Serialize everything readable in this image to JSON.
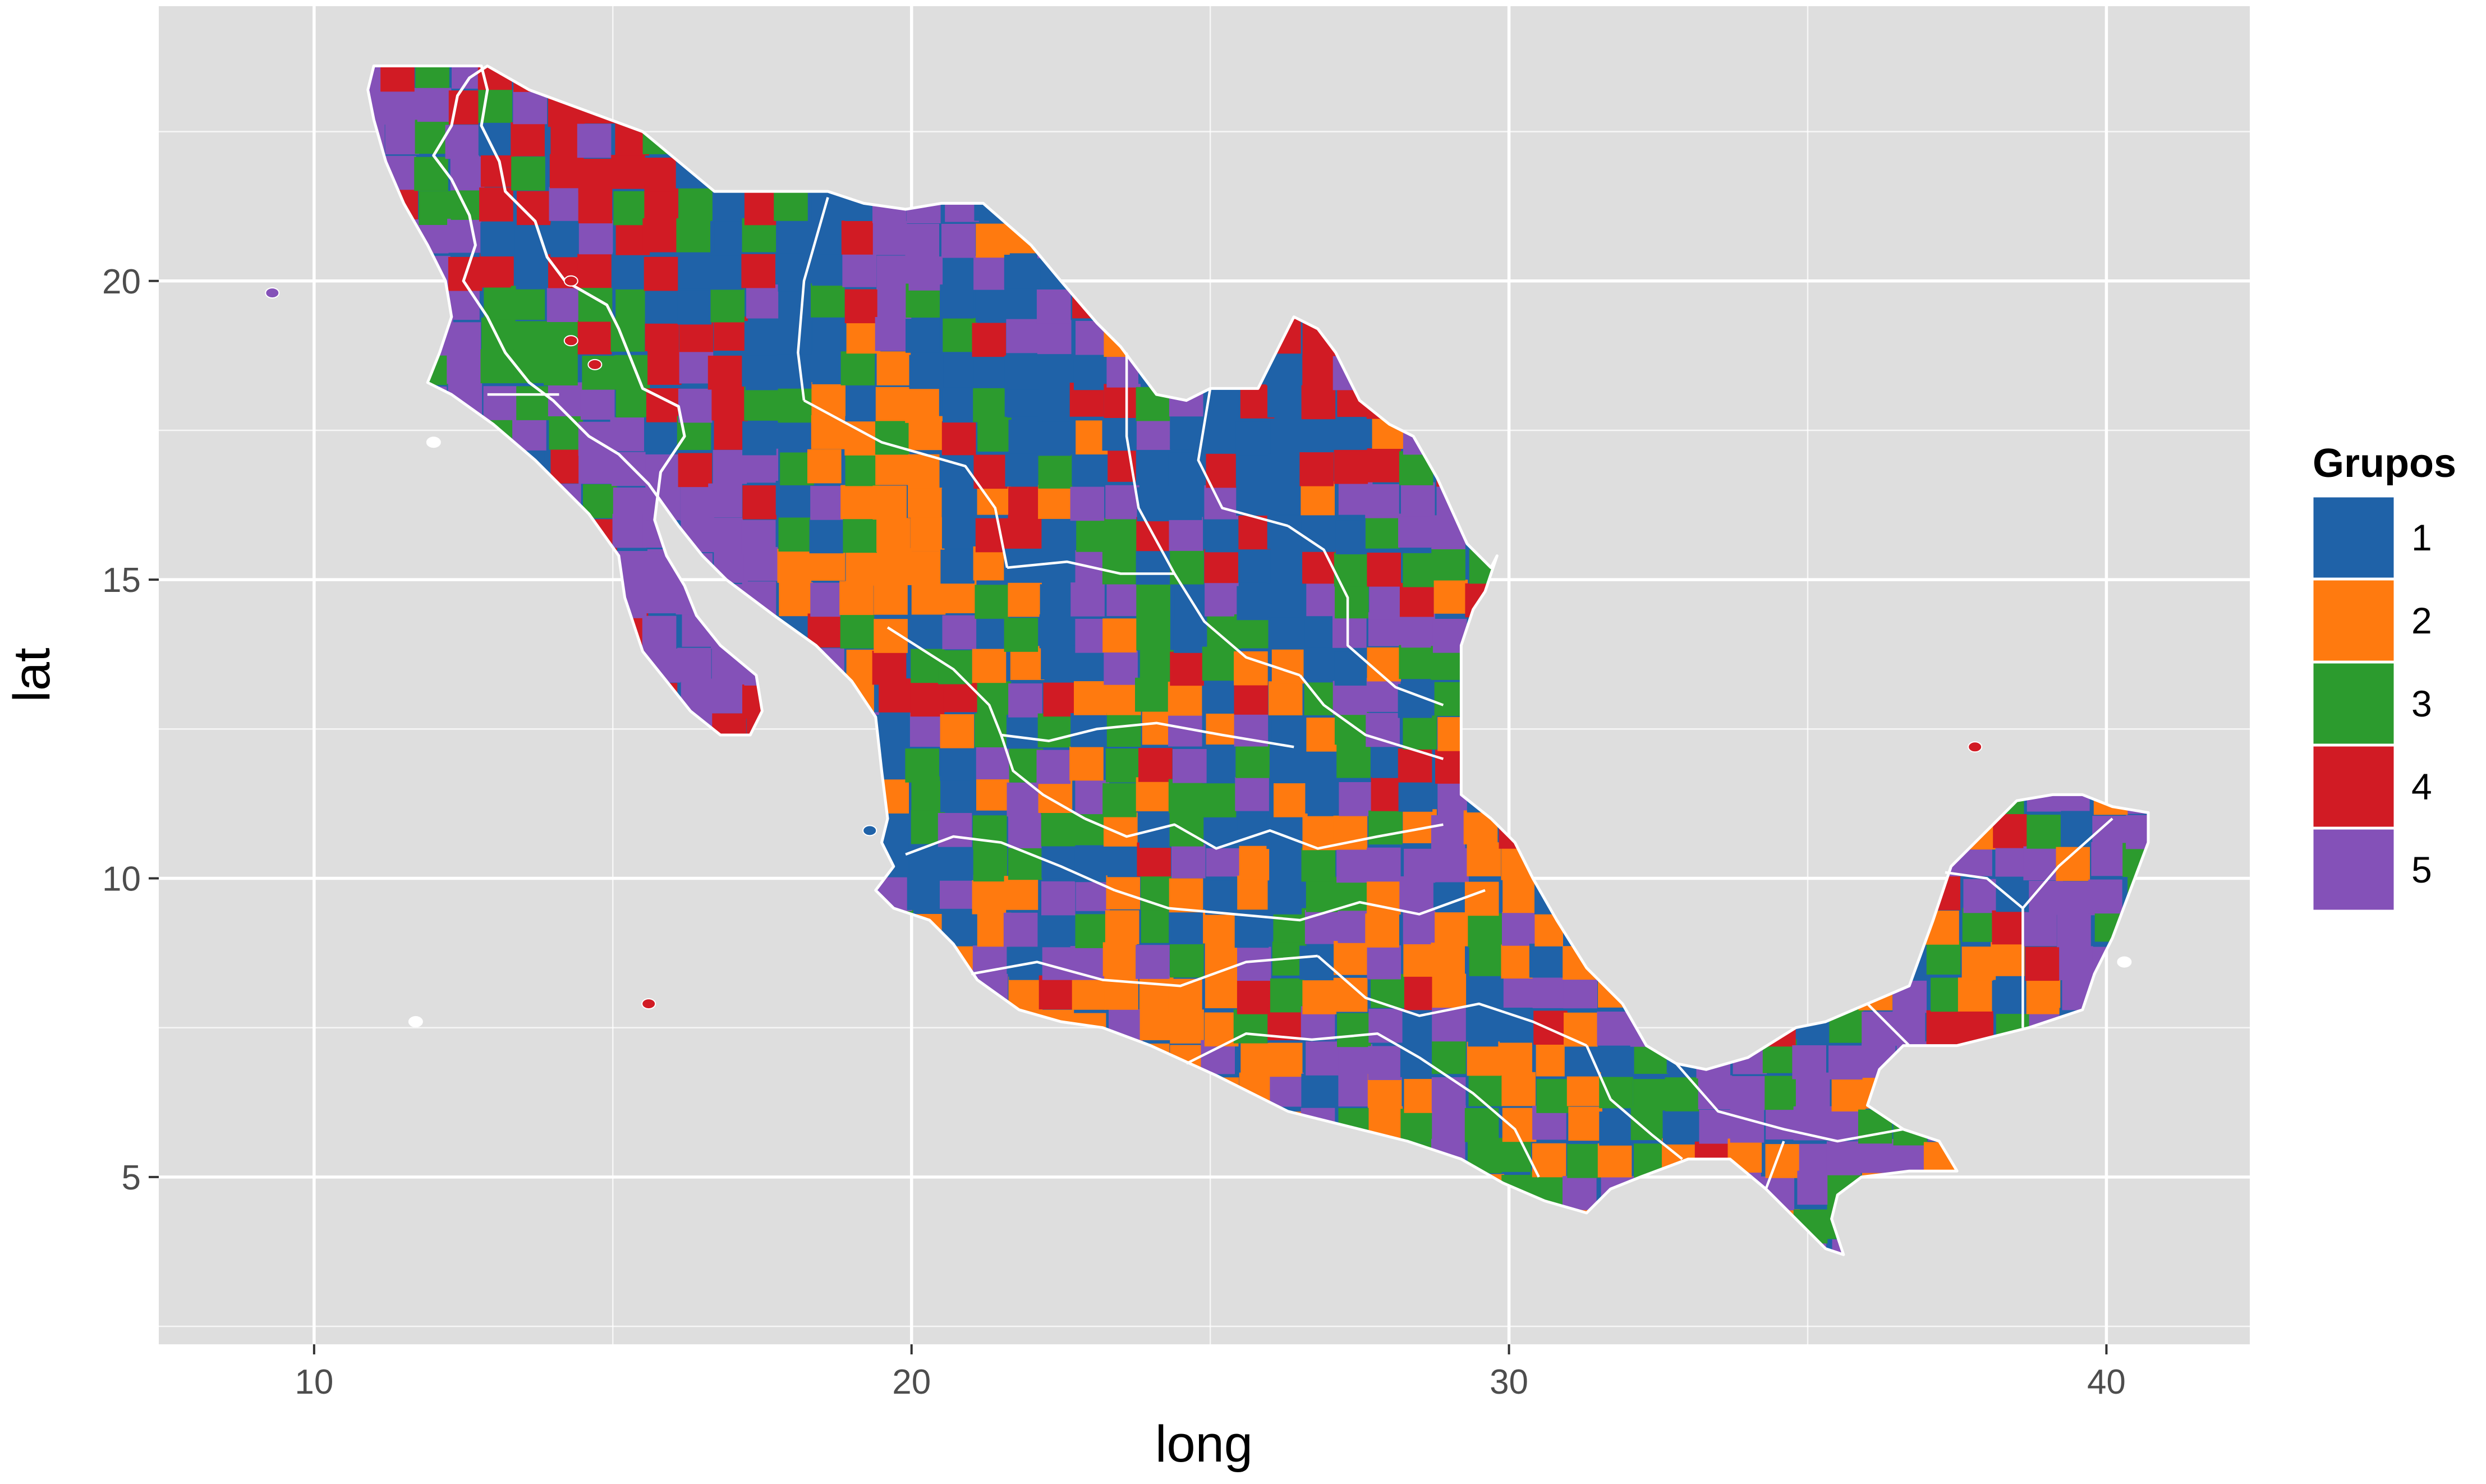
{
  "chart_data": {
    "type": "choropleth-map",
    "xlabel": "long",
    "ylabel": "lat",
    "xlim": [
      7.4,
      42.4
    ],
    "ylim": [
      2.2,
      24.6
    ],
    "x_ticks": [
      10,
      20,
      30,
      40
    ],
    "y_ticks": [
      5,
      10,
      15,
      20
    ],
    "x_minor_ticks": [
      15,
      25,
      35
    ],
    "y_minor_ticks": [
      2.5,
      7.5,
      12.5,
      17.5,
      22.5
    ],
    "grid": true,
    "panel_background": "#DEDEDE",
    "grid_color": "#FFFFFF",
    "legend": {
      "title": "Grupos",
      "placement": "right",
      "entries": [
        {
          "label": "1",
          "color": "#1F62A8"
        },
        {
          "label": "2",
          "color": "#FF7A0F"
        },
        {
          "label": "3",
          "color": "#2C9B2E"
        },
        {
          "label": "4",
          "color": "#D11B24"
        },
        {
          "label": "5",
          "color": "#8451B8"
        }
      ]
    }
  }
}
